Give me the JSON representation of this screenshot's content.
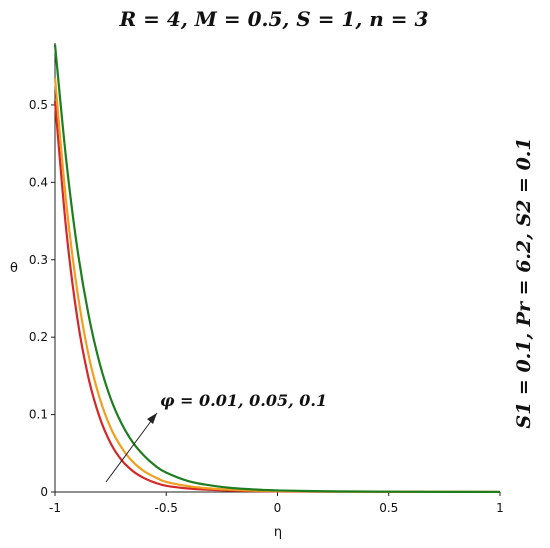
{
  "chart_data": {
    "type": "line",
    "title": "R = 4, M = 0.5, S = 1, n = 3",
    "side_label": "S1 = 0.1, Pr = 6.2, S2 = 0.1",
    "xlabel": "η",
    "ylabel": "θ",
    "xlim": [
      -1,
      1
    ],
    "ylim": [
      0,
      0.58
    ],
    "x_ticks": [
      -1,
      -0.5,
      0,
      0.5,
      1
    ],
    "x_tick_labels": [
      "-1",
      "-0.5",
      "0",
      "0.5",
      "1"
    ],
    "y_ticks": [
      0,
      0.1,
      0.2,
      0.3,
      0.4,
      0.5
    ],
    "y_tick_labels": [
      "0",
      "0.1",
      "0.2",
      "0.3",
      "0.4",
      "0.5"
    ],
    "grid": false,
    "annotation": "φ = 0.01, 0.05, 0.1",
    "series": [
      {
        "color": "#d62728",
        "x": [
          -1,
          -0.95,
          -0.9,
          -0.85,
          -0.8,
          -0.75,
          -0.7,
          -0.65,
          -0.6,
          -0.55,
          -0.5,
          -0.4,
          -0.3,
          -0.2,
          -0.1,
          0,
          0.25,
          0.5,
          0.75,
          1
        ],
        "y": [
          0.505,
          0.34,
          0.225,
          0.148,
          0.097,
          0.063,
          0.041,
          0.027,
          0.018,
          0.012,
          0.008,
          0.0045,
          0.0028,
          0.0018,
          0.0012,
          0.0008,
          0.0004,
          0.0002,
          0.0001,
          0.0001
        ]
      },
      {
        "color": "#f0a020",
        "x": [
          -1,
          -0.95,
          -0.9,
          -0.85,
          -0.8,
          -0.75,
          -0.7,
          -0.65,
          -0.6,
          -0.55,
          -0.5,
          -0.4,
          -0.3,
          -0.2,
          -0.1,
          0,
          0.25,
          0.5,
          0.75,
          1
        ],
        "y": [
          0.535,
          0.375,
          0.26,
          0.178,
          0.122,
          0.083,
          0.057,
          0.039,
          0.027,
          0.019,
          0.013,
          0.0075,
          0.0045,
          0.0028,
          0.0018,
          0.0012,
          0.0005,
          0.0003,
          0.0002,
          0.0001
        ]
      },
      {
        "color": "#1e7d1e",
        "x": [
          -1,
          -0.95,
          -0.9,
          -0.85,
          -0.8,
          -0.75,
          -0.7,
          -0.65,
          -0.6,
          -0.55,
          -0.5,
          -0.4,
          -0.3,
          -0.2,
          -0.1,
          0,
          0.25,
          0.5,
          0.75,
          1
        ],
        "y": [
          0.578,
          0.43,
          0.315,
          0.23,
          0.167,
          0.121,
          0.088,
          0.064,
          0.047,
          0.034,
          0.025,
          0.014,
          0.0085,
          0.005,
          0.0032,
          0.002,
          0.0008,
          0.0004,
          0.0002,
          0.0001
        ]
      }
    ]
  }
}
